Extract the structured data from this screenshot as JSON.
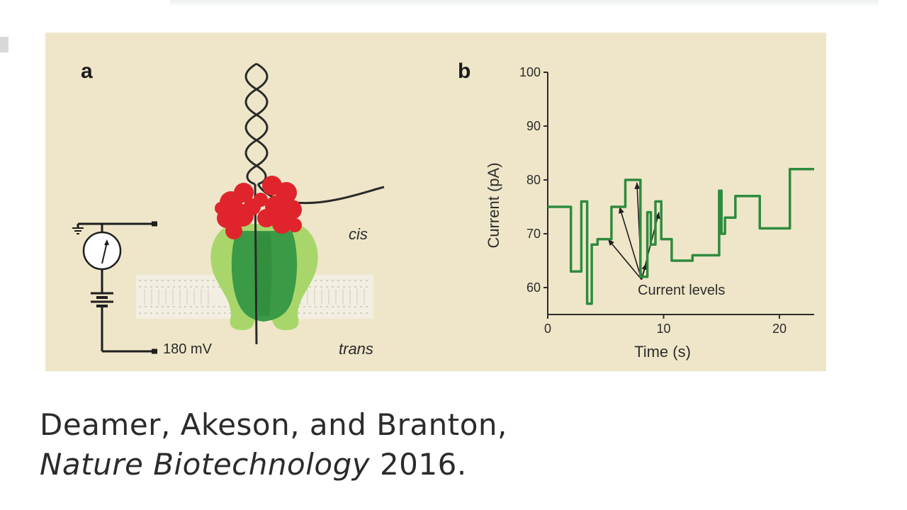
{
  "figure": {
    "panel_a": {
      "letter": "a",
      "voltage_label": "180  mV",
      "cis_label": "cis",
      "trans_label": "trans"
    },
    "panel_b": {
      "letter": "b",
      "annotation": "Current levels"
    },
    "colors": {
      "background": "#efe6c9",
      "trace": "#2e8b3e",
      "protein_red": "#e0242c",
      "pore_green": "#3a9a45",
      "pore_light_green": "#a8d66a"
    }
  },
  "chart_data": {
    "type": "line",
    "xlabel": "Time (s)",
    "ylabel": "Current (pA)",
    "xlim": [
      0,
      23
    ],
    "ylim": [
      55,
      100
    ],
    "x_ticks": [
      0,
      10,
      20
    ],
    "y_ticks": [
      60,
      70,
      80,
      90,
      100
    ],
    "grid": false,
    "series": [
      {
        "x": [
          0,
          2.0,
          2.0,
          2.9,
          2.9,
          3.4,
          3.4,
          3.8,
          3.8,
          4.3,
          4.3,
          5.5,
          5.5,
          6.7,
          6.7,
          8.0,
          8.0,
          8.6,
          8.6,
          8.9,
          8.9,
          9.3,
          9.3,
          9.8,
          9.8,
          10.7,
          10.7,
          12.5,
          12.5,
          14.8,
          14.8,
          15.0,
          15.0,
          15.3,
          15.3,
          16.2,
          16.2,
          18.3,
          18.3,
          20.9,
          20.9,
          23.0
        ],
        "y": [
          75,
          75,
          63,
          63,
          76,
          76,
          57,
          57,
          68,
          68,
          69,
          69,
          75,
          75,
          80,
          80,
          62,
          62,
          74,
          74,
          68,
          68,
          76,
          76,
          69,
          69,
          65,
          65,
          66,
          66,
          78,
          78,
          70,
          70,
          73,
          73,
          77,
          77,
          71,
          71,
          82,
          82
        ]
      }
    ]
  },
  "citation": {
    "authors": "Deamer, Akeson, and Branton,",
    "journal": "Nature Biotechnology",
    "year": "2016."
  }
}
